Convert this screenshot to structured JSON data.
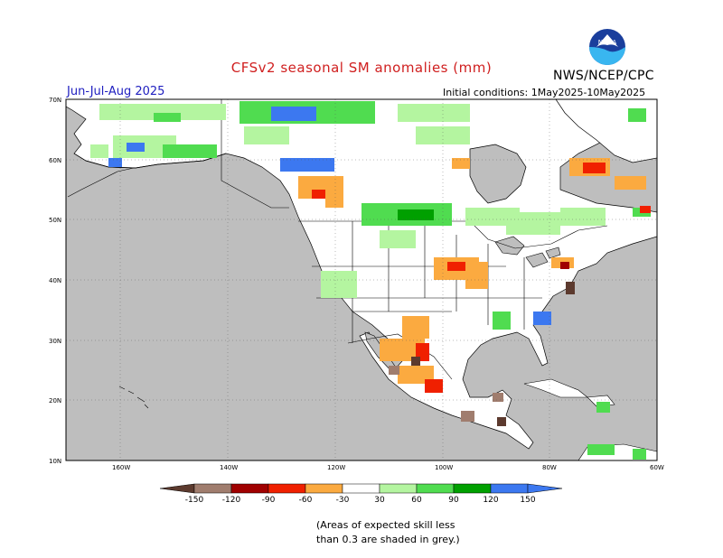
{
  "title": "CFSv2 seasonal SM anomalies (mm)",
  "org": "NWS/NCEP/CPC",
  "logo_text": "NOAA",
  "season": "Jun-Jul-Aug 2025",
  "initial_conditions": "Initial conditions: 1May2025-10May2025",
  "lat_labels": [
    "70N",
    "60N",
    "50N",
    "40N",
    "30N",
    "20N",
    "10N"
  ],
  "lon_labels": [
    "160W",
    "140W",
    "120W",
    "100W",
    "80W",
    "60W"
  ],
  "legend": {
    "ticks": [
      "-150",
      "-120",
      "-90",
      "-60",
      "-30",
      "30",
      "60",
      "90",
      "120",
      "150"
    ],
    "colors": [
      "#5c3a2e",
      "#a07d6e",
      "#a00000",
      "#f02000",
      "#fbaa40",
      "#ffffff",
      "#b4f5a0",
      "#50dc50",
      "#00a000",
      "#3c78f0",
      "#3c78f0"
    ]
  },
  "note_line1": "(Areas of expected skill less",
  "note_line2": "than 0.3 are shaded in grey.)",
  "colors": {
    "land_skill_low": "#bebebe",
    "ocean": "#bebebe",
    "land": "#ffffff"
  }
}
